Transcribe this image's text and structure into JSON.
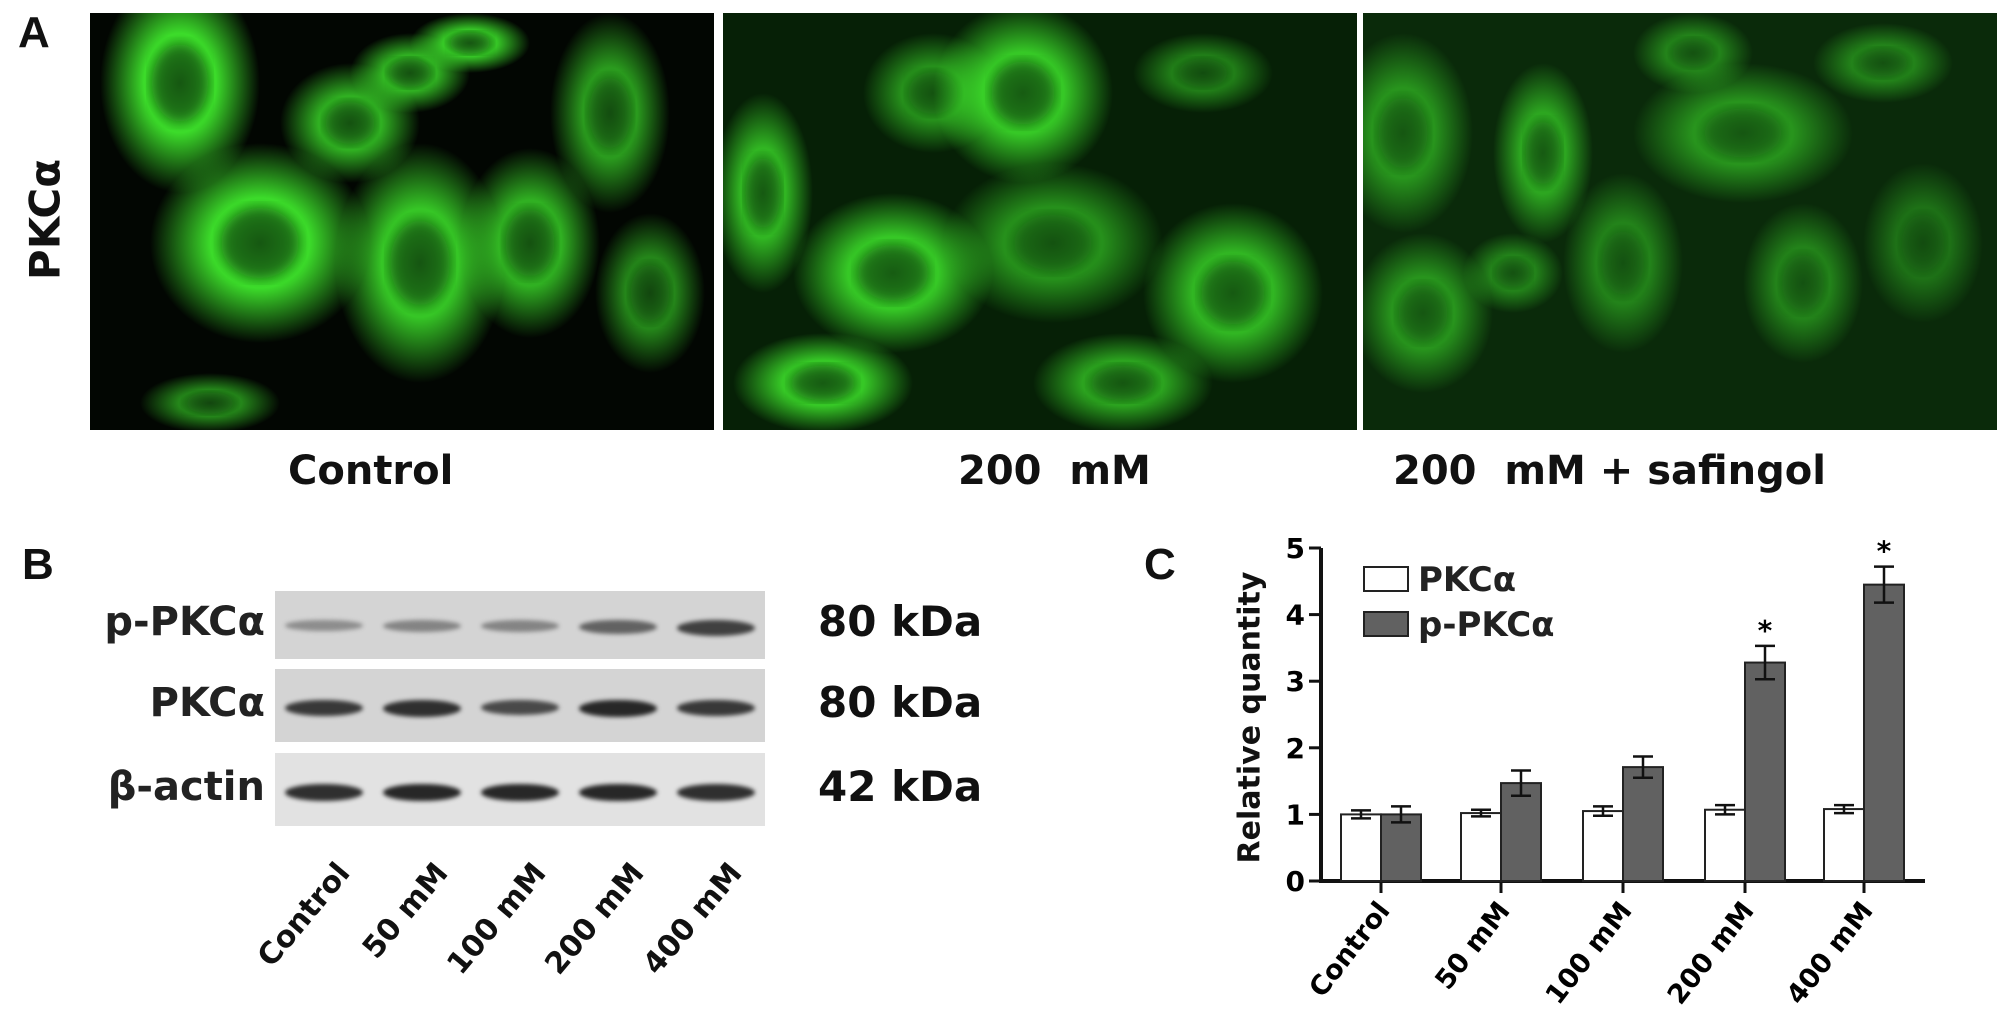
{
  "panel_a": {
    "label": "A",
    "row_label": "PKCα",
    "images": [
      {
        "caption": "Control"
      },
      {
        "caption": "200  mM"
      },
      {
        "caption": "200  mM + safingol"
      }
    ],
    "stain_color": "#3cdc2a"
  },
  "panel_b": {
    "label": "B",
    "rows": [
      {
        "protein": "p-PKCα",
        "size": "80 kDa",
        "band_intensity": [
          0.35,
          0.4,
          0.4,
          0.6,
          0.8
        ]
      },
      {
        "protein": "PKCα",
        "size": "80 kDa",
        "band_intensity": [
          0.85,
          0.9,
          0.75,
          0.95,
          0.85
        ]
      },
      {
        "protein": "β-actin",
        "size": "42 kDa",
        "band_intensity": [
          0.9,
          0.95,
          0.95,
          0.95,
          0.9
        ]
      }
    ],
    "lanes": [
      "Control",
      "50 mM",
      "100 mM",
      "200 mM",
      "400 mM"
    ]
  },
  "chart_data": {
    "label": "C",
    "type": "bar",
    "categories": [
      "Control",
      "50 mM",
      "100 mM",
      "200 mM",
      "400 mM"
    ],
    "ylabel": "Relative quantity",
    "xlabel": "",
    "ylim": [
      0,
      5
    ],
    "yticks": [
      "0",
      "1",
      "2",
      "3",
      "4",
      "5"
    ],
    "legend_position": "top-left",
    "series": [
      {
        "name": "PKCα",
        "color": "#ffffff",
        "values": [
          1.0,
          1.02,
          1.05,
          1.07,
          1.08
        ],
        "errors": [
          0.06,
          0.05,
          0.07,
          0.07,
          0.06
        ],
        "significance": [
          "",
          "",
          "",
          "",
          ""
        ]
      },
      {
        "name": "p-PKCα",
        "color": "#616161",
        "values": [
          1.0,
          1.47,
          1.71,
          3.28,
          4.45
        ],
        "errors": [
          0.12,
          0.19,
          0.16,
          0.25,
          0.27
        ],
        "significance": [
          "",
          "",
          "",
          "*",
          "*"
        ]
      }
    ]
  }
}
